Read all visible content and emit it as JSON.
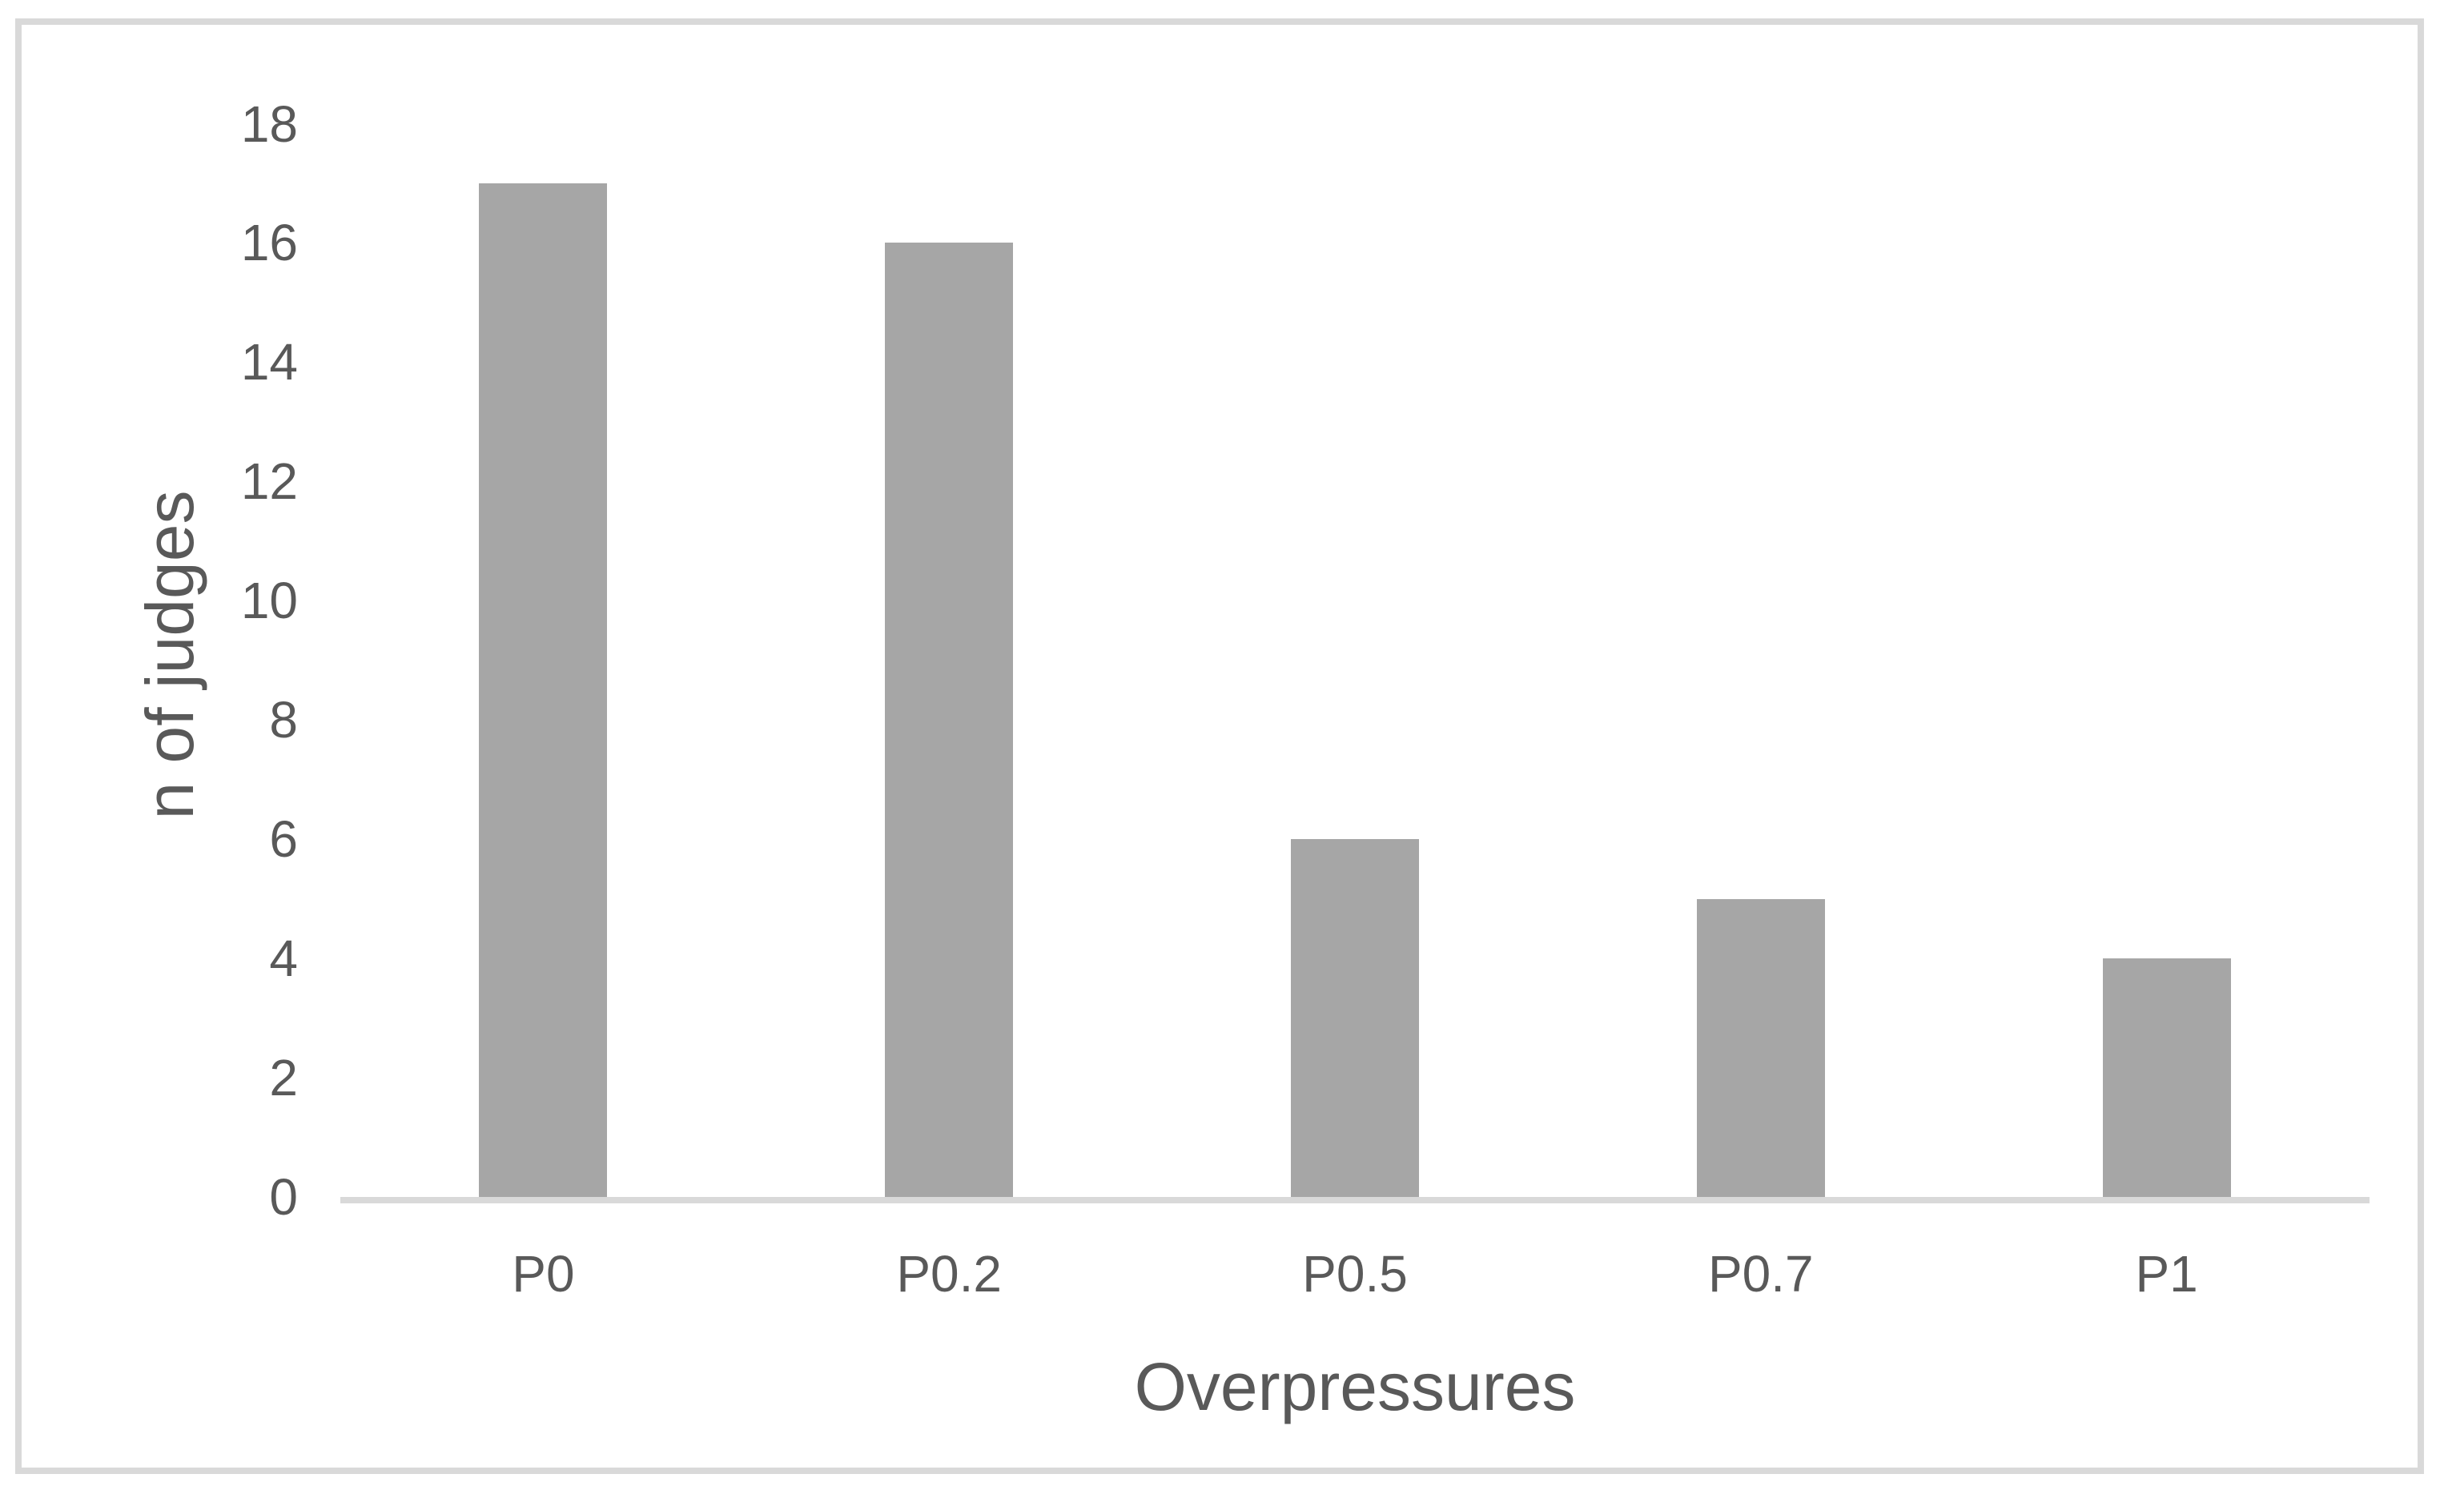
{
  "chart_data": {
    "type": "bar",
    "categories": [
      "P0",
      "P0.2",
      "P0.5",
      "P0.7",
      "P1"
    ],
    "values": [
      17,
      16,
      6,
      5,
      4
    ],
    "title": "",
    "xlabel": "Overpressures",
    "ylabel": "n of judges",
    "ylim": [
      0,
      18
    ],
    "yticks": [
      0,
      2,
      4,
      6,
      8,
      10,
      12,
      14,
      16,
      18
    ],
    "grid": false,
    "legend": "none",
    "bar_color": "#a6a6a6",
    "axis_line_color": "#d9d9d9",
    "frame_border_color": "#d9d9d9",
    "text_color": "#595959",
    "background_color": "#ffffff"
  }
}
